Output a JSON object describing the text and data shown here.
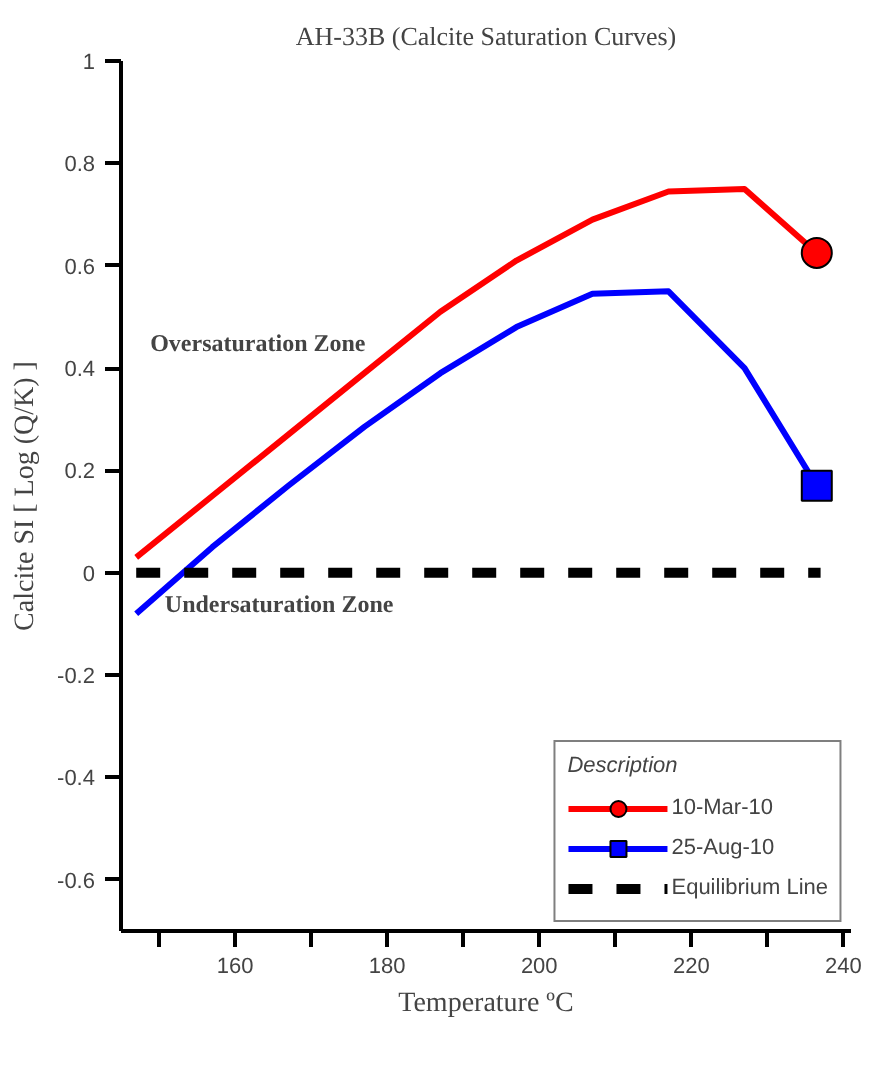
{
  "chart_data": {
    "type": "line",
    "title": "AH-33B (Calcite Saturation Curves)",
    "xlabel": "Temperature ºC",
    "ylabel": "Calcite SI [ Log (Q/K) ]",
    "legend_title": "Description",
    "x": [
      147,
      157,
      167,
      177,
      187,
      197,
      207,
      217,
      227,
      236.5
    ],
    "series": [
      {
        "name": "10-Mar-10",
        "color": "#ff0000",
        "values": [
          0.03,
          0.15,
          0.27,
          0.39,
          0.51,
          0.61,
          0.69,
          0.745,
          0.75,
          0.625
        ]
      },
      {
        "type": "scatter",
        "color": "#ff0000",
        "marker": "circle",
        "x": [
          236.5
        ],
        "values": [
          0.625
        ]
      },
      {
        "name": "25-Aug-10",
        "color": "#0000ff",
        "values": [
          -0.08,
          0.05,
          0.17,
          0.285,
          0.39,
          0.48,
          0.545,
          0.55,
          0.4,
          0.17
        ]
      },
      {
        "type": "scatter",
        "color": "#0000ff",
        "marker": "square",
        "x": [
          236.5
        ],
        "values": [
          0.17
        ]
      },
      {
        "name": "Equilibrium Line",
        "color": "#000000",
        "line_style": "dashed",
        "x": [
          147,
          237
        ],
        "values": [
          0,
          0
        ]
      }
    ],
    "annotations": [
      "Oversaturation Zone",
      "Undersaturation Zone"
    ],
    "xlim": [
      145,
      241
    ],
    "ylim": [
      -0.7,
      1
    ],
    "xticks": [
      {
        "value": 150,
        "label": null
      },
      160,
      {
        "value": 170,
        "label": null
      },
      180,
      {
        "value": 190,
        "label": null
      },
      200,
      {
        "value": 210,
        "label": null
      },
      220,
      {
        "value": 230,
        "label": null
      },
      240
    ],
    "yticks": [
      -0.6,
      -0.4,
      -0.2,
      0,
      0.2,
      0.4,
      0.6,
      0.8,
      1
    ],
    "grid": false,
    "legend": "bottom right"
  }
}
